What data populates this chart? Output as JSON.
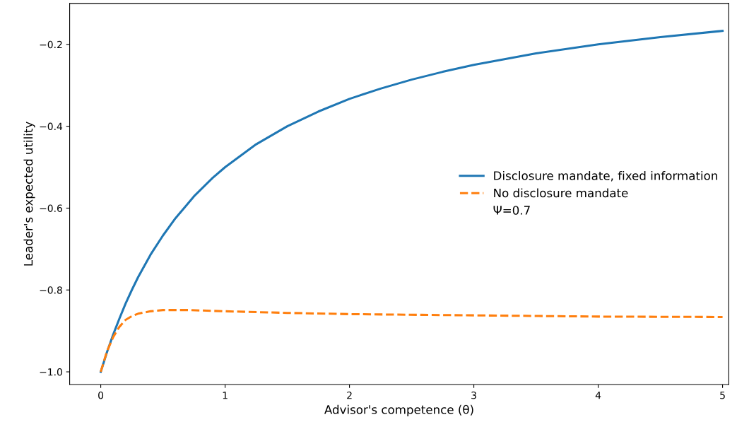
{
  "chart_data": {
    "type": "line",
    "xlabel": "Advisor's competence (θ)",
    "ylabel": "Leader's expected utility",
    "xlim": [
      -0.25,
      5.05
    ],
    "ylim": [
      -1.031,
      -0.1
    ],
    "xticks": [
      0,
      1,
      2,
      3,
      4,
      5
    ],
    "yticks": [
      {
        "value": -1.0,
        "label": "−1.0"
      },
      {
        "value": -0.8,
        "label": "−0.8"
      },
      {
        "value": -0.6,
        "label": "−0.6"
      },
      {
        "value": -0.4,
        "label": "−0.4"
      },
      {
        "value": -0.2,
        "label": "−0.2"
      }
    ],
    "legend": "right",
    "grid": false,
    "annotations": [
      "Ψ=0.7"
    ],
    "series": [
      {
        "name": "Disclosure mandate, fixed information",
        "color": "#1f77b4",
        "line_style": "solid",
        "x": [
          0,
          0.05,
          0.1,
          0.15,
          0.2,
          0.25,
          0.3,
          0.4,
          0.5,
          0.6,
          0.75,
          0.9,
          1,
          1.25,
          1.5,
          1.75,
          2,
          2.25,
          2.5,
          2.75,
          3,
          3.5,
          4,
          4.5,
          5
        ],
        "values": [
          -1,
          -0.952,
          -0.909,
          -0.87,
          -0.833,
          -0.8,
          -0.769,
          -0.714,
          -0.667,
          -0.625,
          -0.571,
          -0.526,
          -0.5,
          -0.444,
          -0.4,
          -0.364,
          -0.333,
          -0.308,
          -0.286,
          -0.267,
          -0.25,
          -0.222,
          -0.2,
          -0.182,
          -0.167
        ]
      },
      {
        "name": "No disclosure mandate",
        "color": "#ff7f0e",
        "line_style": "dashed",
        "x": [
          0,
          0.05,
          0.1,
          0.15,
          0.2,
          0.25,
          0.3,
          0.4,
          0.5,
          0.7,
          1,
          1.5,
          2,
          3,
          4,
          5
        ],
        "values": [
          -1,
          -0.95,
          -0.915,
          -0.89,
          -0.873,
          -0.864,
          -0.858,
          -0.852,
          -0.849,
          -0.849,
          -0.852,
          -0.856,
          -0.859,
          -0.862,
          -0.865,
          -0.866
        ]
      }
    ]
  }
}
